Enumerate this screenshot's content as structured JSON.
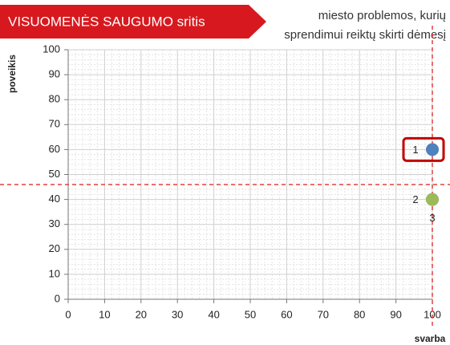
{
  "chart_data": {
    "type": "scatter",
    "title": "VISUOMENĖS SAUGUMO sritis",
    "subtitle": [
      "miesto problemos, kurių",
      "sprendimui reiktų skirti dėmesį"
    ],
    "x_label": "svarba",
    "y_label": "poveikis",
    "xlim": [
      0,
      100
    ],
    "ylim": [
      0,
      100
    ],
    "xticks": [
      0,
      10,
      20,
      30,
      40,
      50,
      60,
      70,
      80,
      90,
      100
    ],
    "yticks": [
      0,
      10,
      20,
      30,
      40,
      50,
      60,
      70,
      80,
      90,
      100
    ],
    "grid": true,
    "points": [
      {
        "label": "1",
        "x": 100,
        "y": 60,
        "color": "#4f81bd",
        "label_position": "left"
      },
      {
        "label": "2",
        "x": 100,
        "y": 40,
        "color": "#9bbb59",
        "label_position": "left"
      },
      {
        "label": "3",
        "x": 100,
        "y": 40,
        "color": "#8064a2",
        "label_position": "below"
      }
    ],
    "reference_lines": [
      {
        "axis": "x",
        "value": 100
      },
      {
        "axis": "y",
        "value": 46
      }
    ],
    "reference_color": "#e0403f",
    "highlight": 0,
    "highlight_color": "#c00000",
    "banner_color": "#d7191f"
  }
}
